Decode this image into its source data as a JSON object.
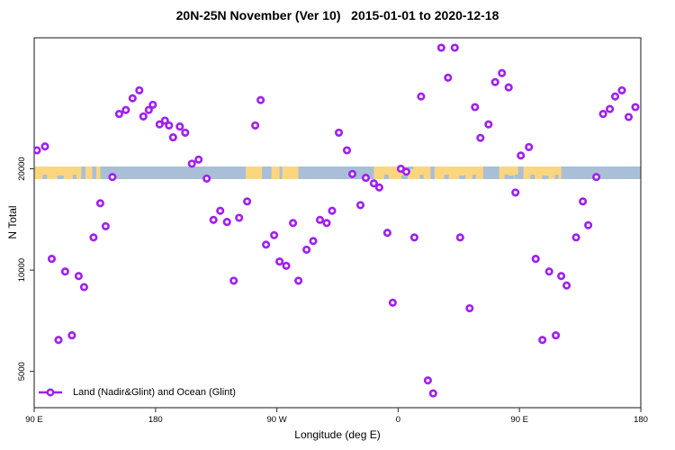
{
  "title": "20N-25N November (Ver 10)   2015-01-01 to 2020-12-18",
  "chart_data": {
    "type": "scatter",
    "title": "20N-25N November (Ver 10)   2015-01-01 to 2020-12-18",
    "xlabel": "Longitude (deg E)",
    "ylabel": "N Total",
    "y_scale": "log",
    "xlim_extended_deg": [
      90,
      540
    ],
    "ylim": [
      3900,
      49000
    ],
    "grid": false,
    "x_ticks": [
      {
        "label": "90 E",
        "deg": 90
      },
      {
        "label": "180",
        "deg": 180
      },
      {
        "label": "90 W",
        "deg": 270
      },
      {
        "label": "0",
        "deg": 360
      },
      {
        "label": "90 E",
        "deg": 450
      },
      {
        "label": "180",
        "deg": 540
      }
    ],
    "y_ticks": [
      {
        "label": "20000",
        "n": 20000
      },
      {
        "label": "10000",
        "n": 10000
      },
      {
        "label": "5000",
        "n": 5000
      }
    ],
    "legend": {
      "label": "Land (Nadir&Glint) and Ocean (Glint)",
      "position": "bottom-left"
    },
    "colors": {
      "marker": "#A020F0",
      "ocean": "#A9BFD8",
      "land": "#FCD67F",
      "axis": "#3c3c3c",
      "text": "#000000"
    },
    "map_band": {
      "description": "land/ocean strip of the 20N-25N latitude band drawn across the longitude axis at N=20000",
      "n_top": 20400,
      "n_bottom": 18700,
      "land_segments_deg": [
        [
          90,
          125
        ],
        [
          128,
          133
        ],
        [
          136,
          139
        ],
        [
          247,
          259
        ],
        [
          266,
          272
        ],
        [
          274,
          286
        ],
        [
          342,
          384
        ],
        [
          387,
          423
        ],
        [
          435,
          449
        ],
        [
          453,
          481
        ]
      ]
    },
    "series": [
      {
        "name": "Land (Nadir&Glint) and Ocean (Glint)",
        "points": [
          [
            92,
            22700
          ],
          [
            98,
            23300
          ],
          [
            153,
            29100
          ],
          [
            158,
            29900
          ],
          [
            163,
            32400
          ],
          [
            168,
            34200
          ],
          [
            171,
            28600
          ],
          [
            175,
            29900
          ],
          [
            178,
            31000
          ],
          [
            183,
            27100
          ],
          [
            187,
            27800
          ],
          [
            190,
            26900
          ],
          [
            193,
            24800
          ],
          [
            198,
            26700
          ],
          [
            202,
            25600
          ],
          [
            207,
            20700
          ],
          [
            212,
            21300
          ],
          [
            258,
            32000
          ],
          [
            254,
            26900
          ],
          [
            316,
            25600
          ],
          [
            392,
            45800
          ],
          [
            402,
            45800
          ],
          [
            397,
            37300
          ],
          [
            377,
            32800
          ],
          [
            437,
            38500
          ],
          [
            432,
            36200
          ],
          [
            442,
            34900
          ],
          [
            417,
            30500
          ],
          [
            427,
            27100
          ],
          [
            421,
            24700
          ],
          [
            457,
            23200
          ],
          [
            451,
            21900
          ],
          [
            526,
            34200
          ],
          [
            521,
            32800
          ],
          [
            512,
            29100
          ],
          [
            517,
            30100
          ],
          [
            536,
            30500
          ],
          [
            531,
            28500
          ],
          [
            322,
            22700
          ],
          [
            326,
            19300
          ],
          [
            362,
            20000
          ],
          [
            366,
            19600
          ],
          [
            148,
            18900
          ],
          [
            218,
            18700
          ],
          [
            139,
            15800
          ],
          [
            143,
            13500
          ],
          [
            134,
            12500
          ],
          [
            103,
            10800
          ],
          [
            113,
            9900
          ],
          [
            123,
            9600
          ],
          [
            127,
            8900
          ],
          [
            228,
            15000
          ],
          [
            223,
            14100
          ],
          [
            233,
            13900
          ],
          [
            242,
            14300
          ],
          [
            248,
            16000
          ],
          [
            262,
            11900
          ],
          [
            268,
            12700
          ],
          [
            282,
            13800
          ],
          [
            297,
            12200
          ],
          [
            292,
            11500
          ],
          [
            272,
            10600
          ],
          [
            277,
            10300
          ],
          [
            302,
            14100
          ],
          [
            307,
            13800
          ],
          [
            311,
            15000
          ],
          [
            286,
            9300
          ],
          [
            238,
            9300
          ],
          [
            336,
            18800
          ],
          [
            342,
            18100
          ],
          [
            346,
            17600
          ],
          [
            332,
            15600
          ],
          [
            352,
            12900
          ],
          [
            372,
            12500
          ],
          [
            406,
            12500
          ],
          [
            447,
            17000
          ],
          [
            507,
            18900
          ],
          [
            497,
            16000
          ],
          [
            501,
            13600
          ],
          [
            492,
            12500
          ],
          [
            462,
            10800
          ],
          [
            472,
            9900
          ],
          [
            481,
            9600
          ],
          [
            485,
            9000
          ],
          [
            108,
            6200
          ],
          [
            118,
            6400
          ],
          [
            356,
            8000
          ],
          [
            413,
            7700
          ],
          [
            467,
            6200
          ],
          [
            477,
            6400
          ],
          [
            382,
            4700
          ],
          [
            386,
            4300
          ]
        ]
      }
    ]
  }
}
